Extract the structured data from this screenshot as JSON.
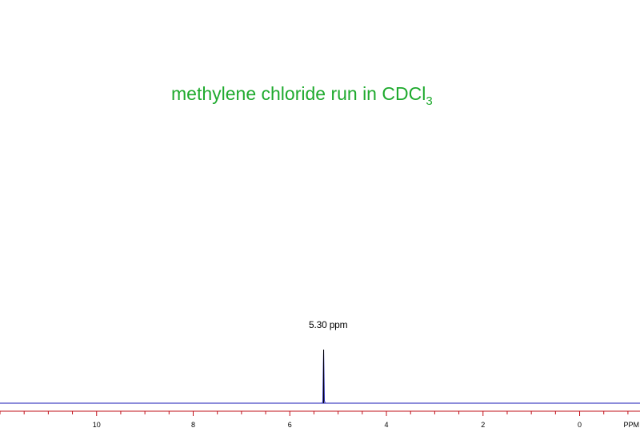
{
  "chart_data": {
    "type": "line",
    "title": {
      "main": "methylene chloride run in CDCl",
      "subscript": "3"
    },
    "title_color": "#1faa2e",
    "xlabel": "PPM",
    "x_direction": "reversed",
    "xlim": [
      12,
      -1.25
    ],
    "major_ticks": [
      10,
      8,
      6,
      4,
      2,
      0
    ],
    "tick_labels": [
      "10",
      "8",
      "6",
      "4",
      "2",
      "0"
    ],
    "minor_tick_step": 0.5,
    "axis_color": "#c0101a",
    "baseline_color": "#1a1ab4",
    "series": [
      {
        "color": "#1a1ab4",
        "x": [
          5.4,
          5.33,
          5.315,
          5.305,
          5.3,
          5.295,
          5.285,
          5.27,
          5.2
        ],
        "y": [
          0.0,
          0.0,
          0.03,
          0.75,
          1.0,
          0.7,
          0.05,
          0.0,
          0.0
        ]
      }
    ],
    "annotations": [
      {
        "text": "5.30 ppm",
        "x": 5.3
      }
    ],
    "grid": false,
    "legend": "none"
  }
}
